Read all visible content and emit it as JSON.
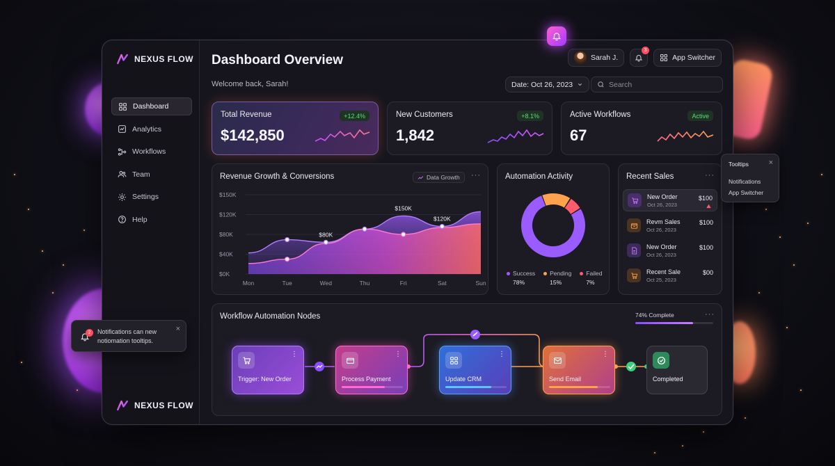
{
  "brand": {
    "name": "NEXUS FLOW"
  },
  "header": {
    "title": "Dashboard Overview",
    "welcome": "Welcome back, Sarah!",
    "user_name": "Sarah J.",
    "notification_count": "3",
    "app_switcher": "App Switcher",
    "date_label": "Date: Oct 26, 2023",
    "search_placeholder": "Search"
  },
  "sidebar": {
    "items": [
      {
        "label": "Dashboard",
        "icon": "grid-icon",
        "active": true
      },
      {
        "label": "Analytics",
        "icon": "chart-icon"
      },
      {
        "label": "Workflows",
        "icon": "workflow-icon"
      },
      {
        "label": "Team",
        "icon": "team-icon"
      },
      {
        "label": "Settings",
        "icon": "gear-icon"
      },
      {
        "label": "Help",
        "icon": "help-icon"
      }
    ]
  },
  "stats": [
    {
      "title": "Total Revenue",
      "value": "$142,850",
      "badge": "+12.4%"
    },
    {
      "title": "New Customers",
      "value": "1,842",
      "badge": "+8.1%"
    },
    {
      "title": "Active Workflows",
      "value": "67",
      "badge": "Active"
    }
  ],
  "revenue_chart": {
    "title": "Revenue Growth & Conversions",
    "toggle_label": "Data Growth"
  },
  "chart_data": {
    "type": "area",
    "title": "Revenue Growth & Conversions",
    "categories": [
      "Mon",
      "Tue",
      "Wed",
      "Thu",
      "Fri",
      "Sat",
      "Sun"
    ],
    "y_ticks": [
      "$150K",
      "$120K",
      "$80K",
      "$40K",
      "$0K"
    ],
    "ylim": [
      0,
      150
    ],
    "series": [
      {
        "values": [
          40,
          65,
          60,
          85,
          110,
          90,
          118
        ]
      },
      {
        "values": [
          20,
          28,
          58,
          85,
          75,
          88,
          95
        ]
      }
    ],
    "annotations": [
      {
        "x": "Wed",
        "label": "$80K"
      },
      {
        "x": "Fri",
        "label": "$150K"
      },
      {
        "x": "Sat",
        "label": "$120K"
      }
    ],
    "grid": true
  },
  "automation": {
    "title": "Automation Activity",
    "segments": [
      {
        "label": "Success",
        "pct": "78%",
        "value": 78,
        "color": "#9b5cff"
      },
      {
        "label": "Pending",
        "pct": "15%",
        "value": 15,
        "color": "#ffa24d"
      },
      {
        "label": "Failed",
        "pct": "7%",
        "value": 7,
        "color": "#ff5b6e"
      }
    ]
  },
  "recent_sales": {
    "title": "Recent Sales",
    "items": [
      {
        "name": "New Order",
        "date": "Oct 26, 2023",
        "amount": "$100",
        "icon": "cart-icon",
        "color": "#8a4dd9",
        "active": true
      },
      {
        "name": "Revm Sales",
        "date": "Oct 26, 2023",
        "amount": "$100",
        "icon": "box-icon",
        "color": "#d98a2b"
      },
      {
        "name": "New Order",
        "date": "Oct 26, 2023",
        "amount": "$100",
        "icon": "doc-icon",
        "color": "#8a4dd9"
      },
      {
        "name": "Recent Sale",
        "date": "Oct 25, 2023",
        "amount": "$00",
        "icon": "cart-icon",
        "color": "#d98a2b"
      }
    ]
  },
  "tooltip": {
    "title": "Tooltips",
    "items": [
      "Notifications",
      "App Switcher"
    ]
  },
  "toast": {
    "badge": "2",
    "text": "Notifications can new notiomation tooltips."
  },
  "workflow": {
    "title": "Workflow Automation Nodes",
    "progress_label": "74% Complete",
    "progress": 0.74,
    "nodes": [
      {
        "label": "Trigger: New Order",
        "icon": "cart-icon"
      },
      {
        "label": "Process Payment",
        "icon": "card-icon",
        "progress": 0.7
      },
      {
        "label": "Update CRM",
        "icon": "users-icon",
        "progress": 0.75
      },
      {
        "label": "Send Email",
        "icon": "mail-icon",
        "progress": 0.8
      },
      {
        "label": "Completed",
        "icon": "check-icon"
      }
    ]
  }
}
